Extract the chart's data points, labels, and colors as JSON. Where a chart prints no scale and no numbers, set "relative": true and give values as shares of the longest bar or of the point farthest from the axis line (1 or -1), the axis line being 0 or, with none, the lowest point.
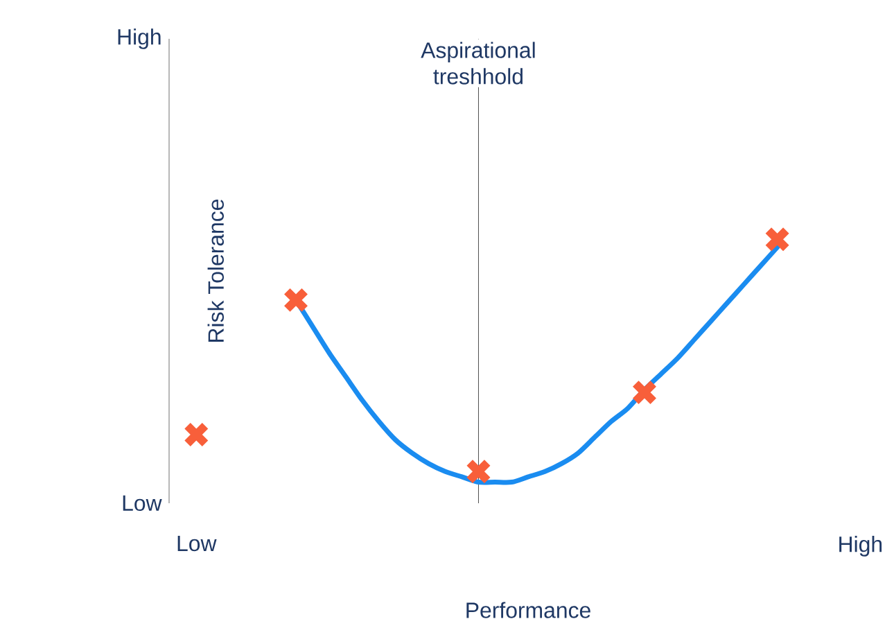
{
  "chart_data": {
    "type": "line",
    "xlabel": "Performance",
    "ylabel": "Risk Tolerance",
    "relative": true,
    "categories": [
      "Low",
      null,
      null,
      null,
      null,
      null,
      null,
      null,
      null,
      null,
      null,
      null,
      null,
      null,
      null,
      null,
      null,
      null,
      null,
      null,
      null,
      null,
      null,
      null,
      null,
      null,
      null,
      null,
      null,
      null,
      null,
      null,
      null,
      null,
      null,
      null,
      null,
      null,
      null,
      null,
      "High"
    ],
    "annotations": [
      "Low",
      "High"
    ],
    "ref_lines": [
      {
        "axis": "x",
        "label": "Aspirational treshhold",
        "color": "#1f1f1f"
      }
    ],
    "series": [
      {
        "color": "#1a8cf0",
        "marker": "none",
        "line_style": "solid",
        "values": [
          null,
          null,
          null,
          null,
          null,
          null,
          0.77,
          0.67,
          0.57,
          0.48,
          0.39,
          0.31,
          0.24,
          0.19,
          0.15,
          0.12,
          0.1,
          0.08,
          0.08,
          0.08,
          0.1,
          0.12,
          0.15,
          0.19,
          0.25,
          0.31,
          0.36,
          0.43,
          0.49,
          0.55,
          0.62,
          0.69,
          0.76,
          0.83,
          0.9,
          0.97,
          null,
          null,
          null,
          null,
          null
        ]
      },
      {
        "type": "scatter",
        "color": "#f85f3a",
        "marker": "cross",
        "values": [
          0.26,
          null,
          null,
          null,
          null,
          null,
          0.77,
          null,
          null,
          null,
          null,
          null,
          null,
          null,
          null,
          null,
          null,
          0.12,
          null,
          null,
          null,
          null,
          null,
          null,
          null,
          null,
          null,
          0.42,
          null,
          null,
          null,
          null,
          null,
          null,
          null,
          1,
          null,
          null,
          null,
          null,
          null
        ]
      }
    ]
  }
}
